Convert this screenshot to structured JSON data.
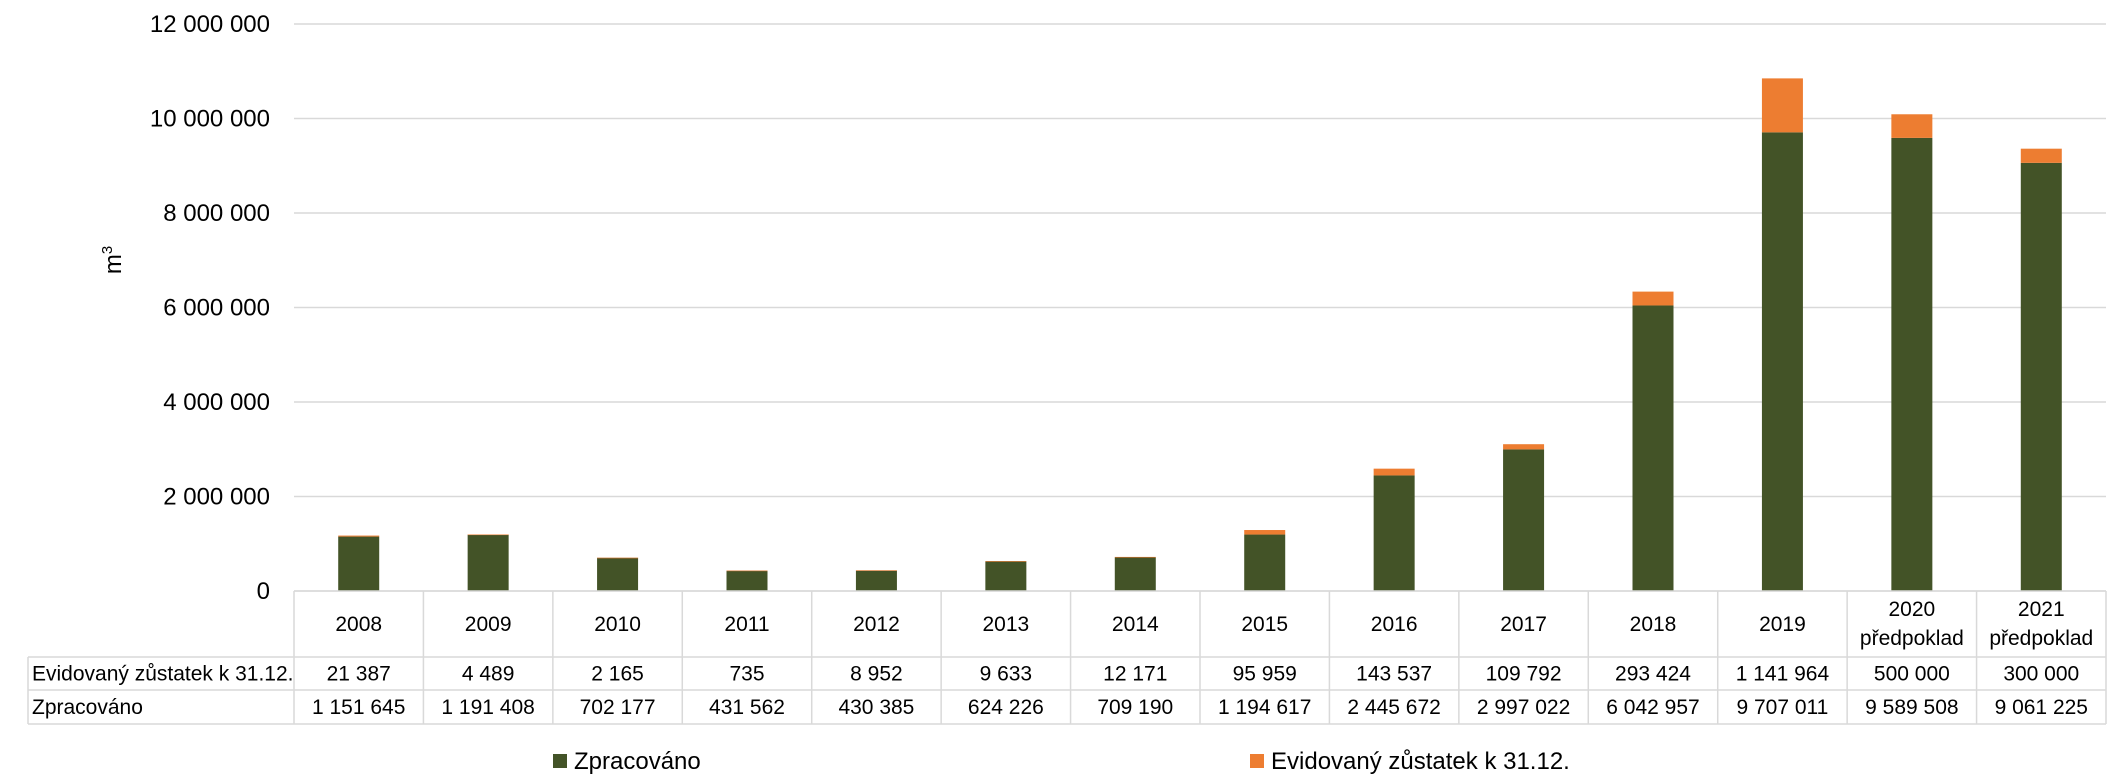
{
  "chart_data": {
    "type": "bar",
    "stacked": true,
    "ylabel": "m",
    "ylabel_superscript": "3",
    "ylim": [
      0,
      12000000
    ],
    "y_ticks": [
      "0",
      "2 000 000",
      "4 000 000",
      "6 000 000",
      "8 000 000",
      "10 000 000",
      "12 000 000"
    ],
    "y_tick_values": [
      0,
      2000000,
      4000000,
      6000000,
      8000000,
      10000000,
      12000000
    ],
    "categories": [
      [
        "2008"
      ],
      [
        "2009"
      ],
      [
        "2010"
      ],
      [
        "2011"
      ],
      [
        "2012"
      ],
      [
        "2013"
      ],
      [
        "2014"
      ],
      [
        "2015"
      ],
      [
        "2016"
      ],
      [
        "2017"
      ],
      [
        "2018"
      ],
      [
        "2019"
      ],
      [
        "2020",
        "předpoklad"
      ],
      [
        "2021",
        "předpoklad"
      ]
    ],
    "series": [
      {
        "name": "Zpracováno",
        "color": "#435327",
        "values": [
          1151645,
          1191408,
          702177,
          431562,
          430385,
          624226,
          709190,
          1194617,
          2445672,
          2997022,
          6042957,
          9707011,
          9589508,
          9061225
        ],
        "labels": [
          "1 151 645",
          "1 191 408",
          "702 177",
          "431 562",
          "430 385",
          "624 226",
          "709 190",
          "1 194 617",
          "2 445 672",
          "2 997 022",
          "6 042 957",
          "9 707 011",
          "9 589 508",
          "9 061 225"
        ]
      },
      {
        "name": "Evidovaný zůstatek k 31.12.",
        "color": "#ED7D31",
        "values": [
          21387,
          4489,
          2165,
          735,
          8952,
          9633,
          12171,
          95959,
          143537,
          109792,
          293424,
          1141964,
          500000,
          300000
        ],
        "labels": [
          "21 387",
          "4 489",
          "2 165",
          "735",
          "8 952",
          "9 633",
          "12 171",
          "95 959",
          "143 537",
          "109 792",
          "293 424",
          "1 141 964",
          "500 000",
          "300 000"
        ]
      }
    ],
    "table_rows": [
      {
        "label": "Evidovaný zůstatek k 31.12.",
        "series_index": 1
      },
      {
        "label": "Zpracováno",
        "series_index": 0
      }
    ],
    "legend": [
      {
        "label": "Zpracováno",
        "series_index": 0
      },
      {
        "label": "Evidovaný zůstatek k 31.12.",
        "series_index": 1
      }
    ],
    "legend_position": "bottom",
    "grid": true,
    "gridline_color": "#D9D9D9",
    "table_border_color": "#D9D9D9"
  }
}
